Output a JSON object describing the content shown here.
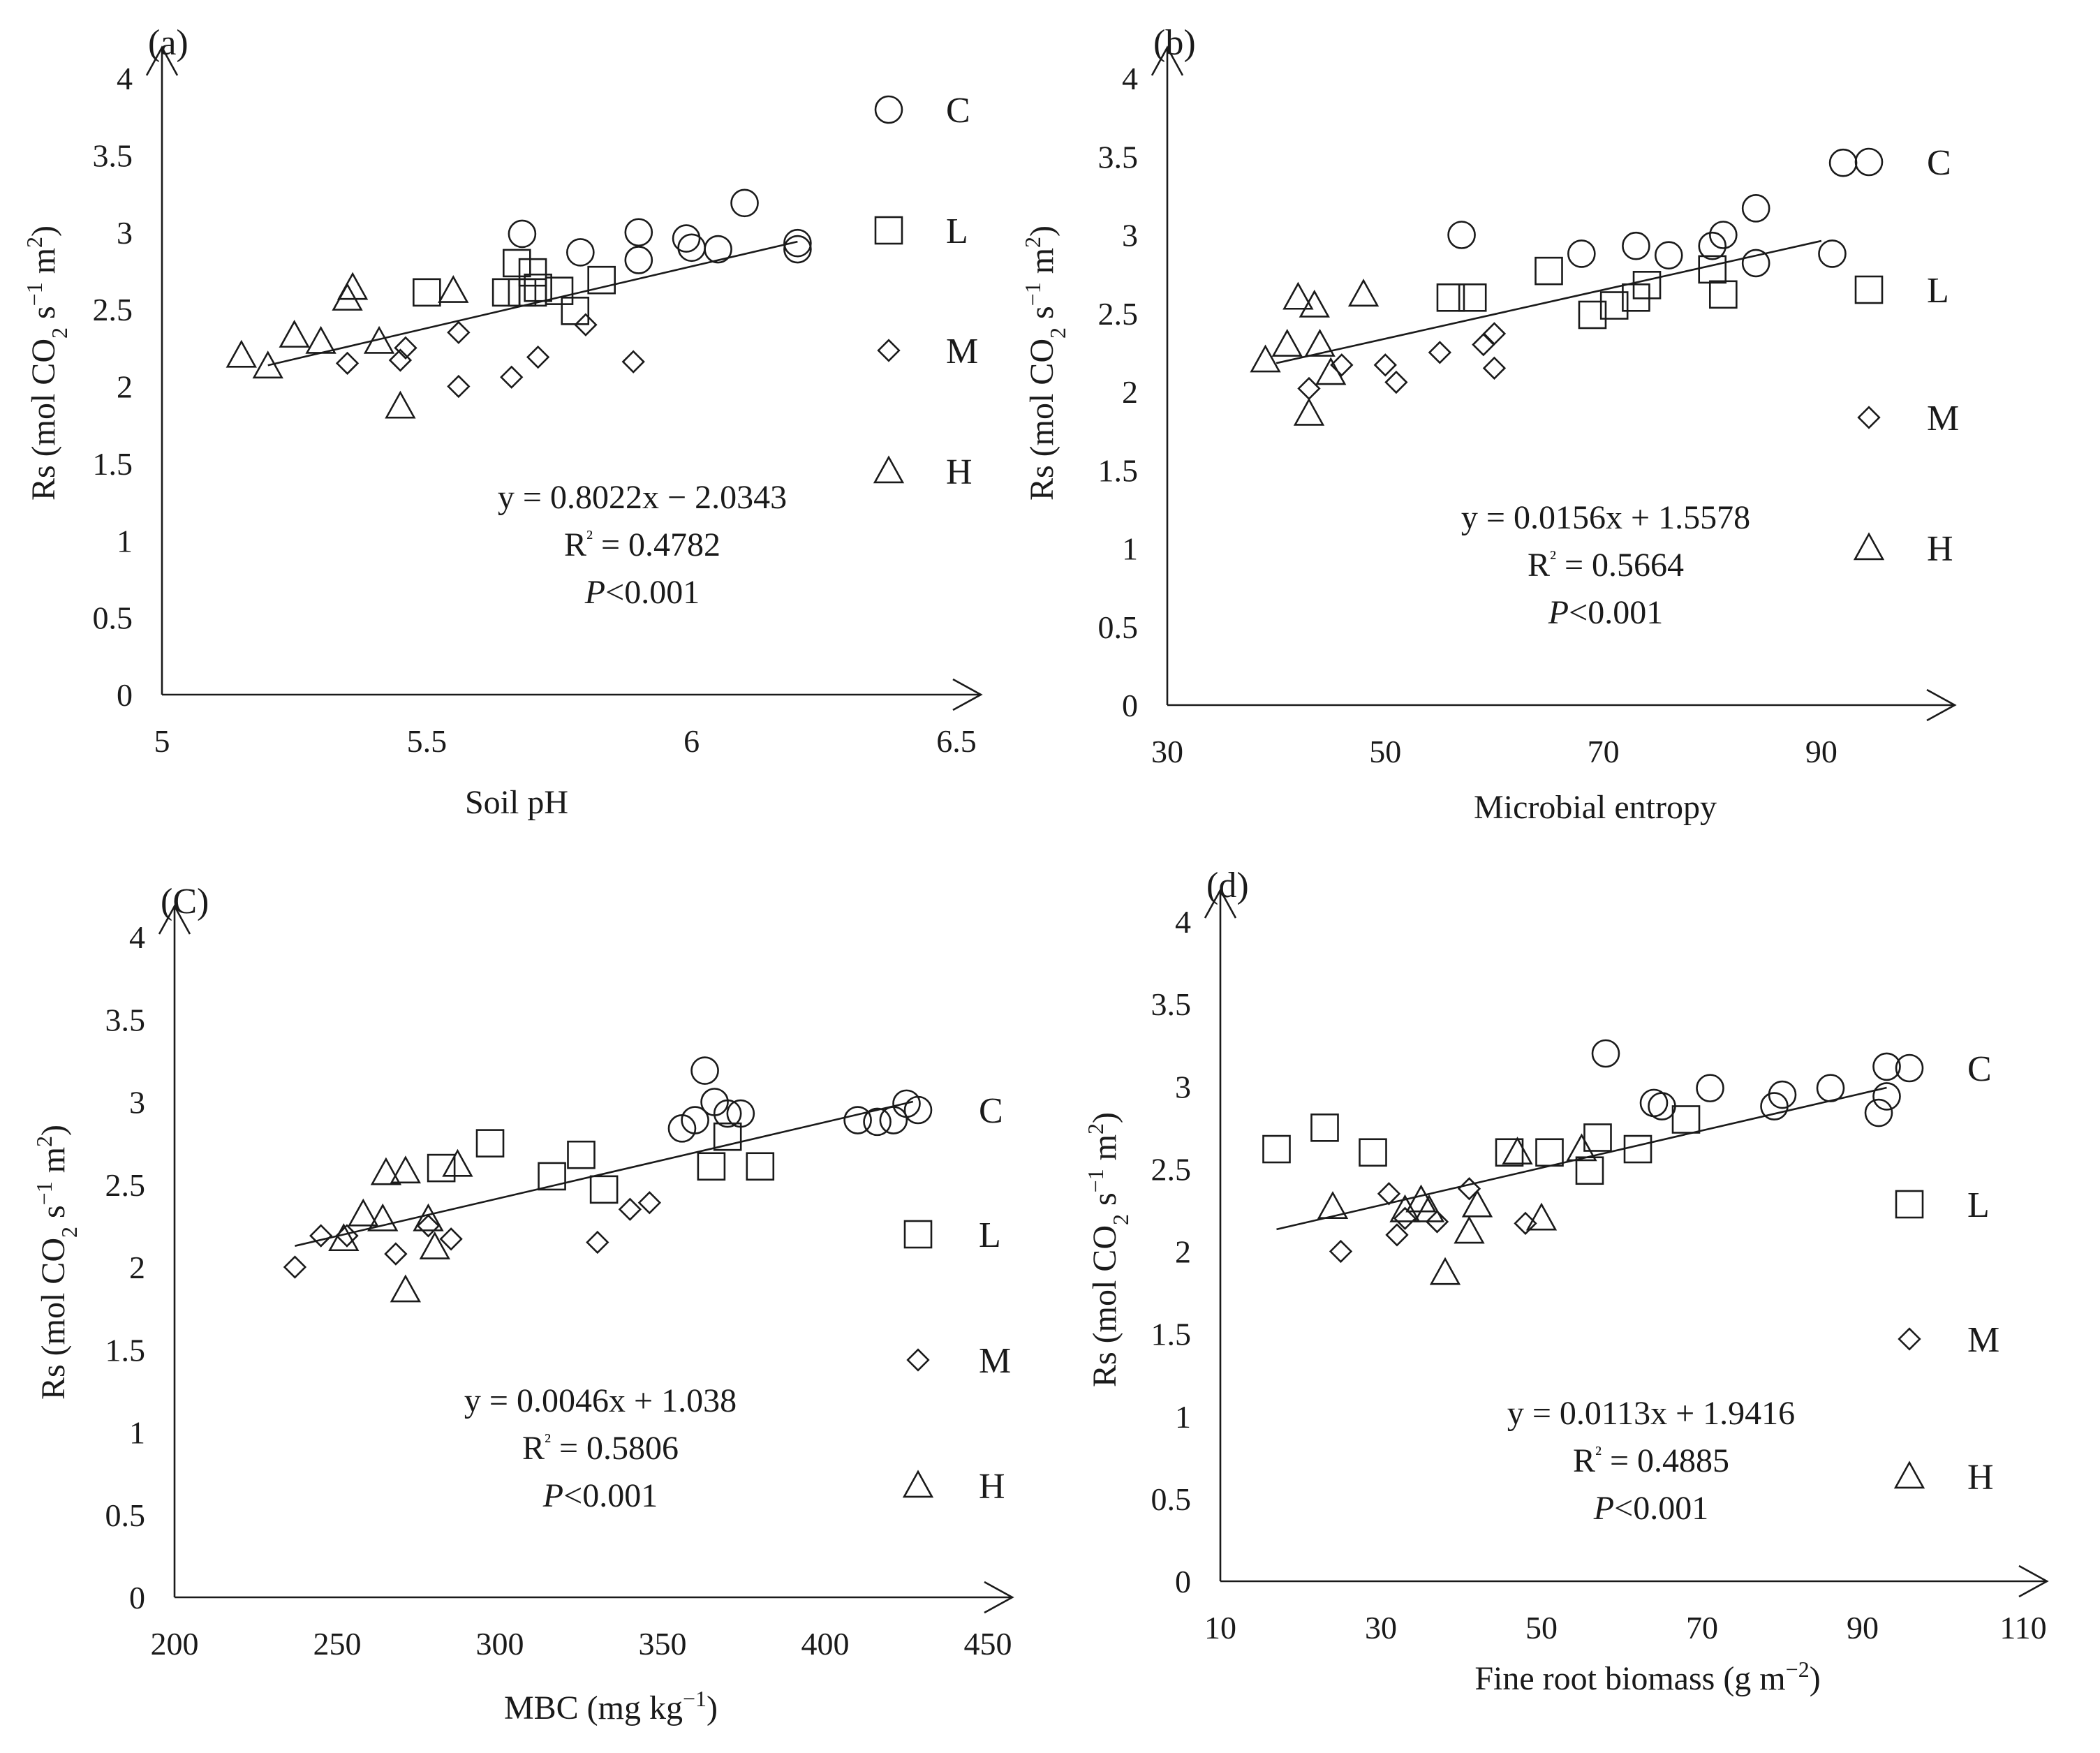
{
  "chart_data": [
    {
      "type": "scatter",
      "panel_label": "(a)",
      "xlabel": "Soil pH",
      "ylabel": {
        "main": "Rs (mol CO",
        "sub": "2",
        "mid": " s",
        "sup1": "−1",
        "end": " m",
        "sup2": "2",
        "close": ")"
      },
      "xlim": [
        5,
        6.5
      ],
      "ylim": [
        0,
        4
      ],
      "x_ticks": [
        "5",
        "5.5",
        "6",
        "6.5"
      ],
      "y_ticks": [
        "0",
        "0.5",
        "1",
        "1.5",
        "2",
        "2.5",
        "3",
        "3.5",
        "4"
      ],
      "equation": "y = 0.8022x − 2.0343",
      "r2_prefix": "R",
      "r2_value": " = 0.4782",
      "p_italic": "P",
      "p_value": "<0.001",
      "fit": {
        "slope": 0.8022,
        "intercept": -2.0343,
        "x_range": [
          5.2,
          6.2
        ]
      },
      "legend_position": "right",
      "series": [
        {
          "name": "C",
          "marker": "circle",
          "x": [
            5.79,
            5.9,
            5.9,
            5.99,
            6.0,
            6.05,
            6.1,
            6.2,
            6.2,
            5.68
          ],
          "y": [
            2.87,
            3.0,
            2.82,
            2.96,
            2.9,
            2.89,
            3.19,
            2.93,
            2.89,
            2.99
          ]
        },
        {
          "name": "L",
          "marker": "square",
          "x": [
            5.5,
            5.65,
            5.67,
            5.7,
            5.71,
            5.7,
            5.75,
            5.78,
            5.83,
            5.68
          ],
          "y": [
            2.61,
            2.61,
            2.8,
            2.74,
            2.64,
            2.61,
            2.62,
            2.49,
            2.69,
            2.61
          ]
        },
        {
          "name": "M",
          "marker": "diamond",
          "x": [
            5.35,
            5.45,
            5.46,
            5.56,
            5.56,
            5.66,
            5.71,
            5.8,
            5.89
          ],
          "y": [
            2.15,
            2.17,
            2.25,
            2.35,
            2.0,
            2.06,
            2.19,
            2.4,
            2.16
          ]
        },
        {
          "name": "H",
          "marker": "triangle",
          "x": [
            5.15,
            5.2,
            5.25,
            5.3,
            5.36,
            5.35,
            5.41,
            5.45,
            5.55
          ],
          "y": [
            2.2,
            2.13,
            2.33,
            2.29,
            2.64,
            2.57,
            2.29,
            1.87,
            2.62
          ]
        }
      ]
    },
    {
      "type": "scatter",
      "panel_label": "(b)",
      "xlabel": "Microbial entropy",
      "ylabel": {
        "main": "Rs (mol CO",
        "sub": "2",
        "mid": " s",
        "sup1": "−1",
        "end": " m",
        "sup2": "2",
        "close": ")"
      },
      "xlim": [
        30,
        100
      ],
      "ylim": [
        0,
        4
      ],
      "x_ticks": [
        "30",
        "50",
        "70",
        "90"
      ],
      "y_ticks": [
        "0",
        "0.5",
        "1",
        "1.5",
        "2",
        "2.5",
        "3",
        "3.5",
        "4"
      ],
      "equation": "y = 0.0156x + 1.5578",
      "r2_prefix": "R",
      "r2_value": " = 0.5664",
      "p_italic": "P",
      "p_value": "<0.001",
      "fit": {
        "slope": 0.0156,
        "intercept": 1.5578,
        "x_range": [
          40,
          90
        ]
      },
      "legend_position": "right",
      "series": [
        {
          "name": "C",
          "marker": "circle",
          "x": [
            57,
            68,
            73,
            76,
            80,
            81,
            84,
            84,
            91,
            92
          ],
          "y": [
            3.0,
            2.88,
            2.93,
            2.87,
            2.93,
            3.0,
            3.17,
            2.82,
            2.88,
            3.46
          ]
        },
        {
          "name": "L",
          "marker": "square",
          "x": [
            56,
            58,
            65,
            69,
            71,
            73,
            74,
            80,
            81
          ],
          "y": [
            2.6,
            2.6,
            2.77,
            2.49,
            2.55,
            2.6,
            2.68,
            2.78,
            2.62
          ]
        },
        {
          "name": "M",
          "marker": "diamond",
          "x": [
            43,
            46,
            50,
            51,
            55,
            59,
            60,
            60
          ],
          "y": [
            2.02,
            2.17,
            2.17,
            2.06,
            2.25,
            2.3,
            2.15,
            2.37
          ]
        },
        {
          "name": "H",
          "marker": "triangle",
          "x": [
            39,
            41,
            42,
            43,
            43.5,
            44,
            45,
            48
          ],
          "y": [
            2.2,
            2.3,
            2.6,
            1.86,
            2.55,
            2.3,
            2.12,
            2.62
          ]
        }
      ]
    },
    {
      "type": "scatter",
      "panel_label": "(C)",
      "xlabel": "MBC (mg kg",
      "xlabel_sup": "−1",
      "xlabel_close": ")",
      "ylabel": {
        "main": "Rs (mol CO",
        "sub": "2",
        "mid": " s",
        "sup1": "−1",
        "end": " m",
        "sup2": "2",
        "close": ")"
      },
      "xlim": [
        200,
        450
      ],
      "ylim": [
        0,
        4
      ],
      "x_ticks": [
        "200",
        "250",
        "300",
        "350",
        "400",
        "450"
      ],
      "y_ticks": [
        "0",
        "0.5",
        "1",
        "1.5",
        "2",
        "2.5",
        "3",
        "3.5",
        "4"
      ],
      "equation": "y = 0.0046x + 1.038",
      "r2_prefix": "R",
      "r2_value": " = 0.5806",
      "p_italic": "P",
      "p_value": "<0.001",
      "fit": {
        "slope": 0.0046,
        "intercept": 1.038,
        "x_range": [
          237,
          427
        ]
      },
      "legend_position": "right",
      "series": [
        {
          "name": "C",
          "marker": "circle",
          "x": [
            356,
            360,
            363,
            366,
            370,
            374,
            410,
            416,
            421,
            425
          ],
          "y": [
            2.84,
            2.89,
            3.19,
            3.0,
            2.93,
            2.93,
            2.89,
            2.88,
            2.89,
            2.99
          ]
        },
        {
          "name": "L",
          "marker": "square",
          "x": [
            282,
            297,
            316,
            325,
            332,
            365,
            370,
            380
          ],
          "y": [
            2.6,
            2.75,
            2.55,
            2.68,
            2.47,
            2.61,
            2.79,
            2.61
          ]
        },
        {
          "name": "M",
          "marker": "diamond",
          "x": [
            237,
            245,
            253,
            268,
            278,
            285,
            330,
            340,
            346
          ],
          "y": [
            2.0,
            2.19,
            2.19,
            2.08,
            2.25,
            2.17,
            2.15,
            2.35,
            2.39
          ]
        },
        {
          "name": "H",
          "marker": "triangle",
          "x": [
            252,
            258,
            264,
            265,
            271,
            271,
            278,
            280,
            287
          ],
          "y": [
            2.17,
            2.32,
            2.29,
            2.57,
            2.58,
            1.86,
            2.29,
            2.12,
            2.62
          ]
        }
      ]
    },
    {
      "type": "scatter",
      "panel_label": "(d)",
      "xlabel": "Fine root biomass (g m",
      "xlabel_sup": "−2",
      "xlabel_close": ")",
      "ylabel": {
        "main": "Rs (mol CO",
        "sub": "2",
        "mid": " s",
        "sup1": "−1",
        "end": " m",
        "sup2": "2",
        "close": ")"
      },
      "xlim": [
        10,
        110
      ],
      "ylim": [
        0,
        4
      ],
      "x_ticks": [
        "10",
        "30",
        "50",
        "70",
        "90",
        "110"
      ],
      "y_ticks": [
        "0",
        "0.5",
        "1",
        "1.5",
        "2",
        "2.5",
        "3",
        "3.5",
        "4"
      ],
      "equation": "y = 0.0113x + 1.9416",
      "r2_prefix": "R",
      "r2_value": " = 0.4885",
      "p_italic": "P",
      "p_value": "<0.001",
      "fit": {
        "slope": 0.0113,
        "intercept": 1.9416,
        "x_range": [
          17,
          93
        ]
      },
      "legend_position": "right",
      "series": [
        {
          "name": "C",
          "marker": "circle",
          "x": [
            58,
            64,
            65,
            71,
            79,
            80,
            86,
            92,
            93,
            93
          ],
          "y": [
            3.2,
            2.9,
            2.88,
            2.99,
            2.88,
            2.95,
            2.99,
            2.84,
            2.94,
            3.12
          ]
        },
        {
          "name": "L",
          "marker": "square",
          "x": [
            17,
            23,
            29,
            46,
            51,
            56,
            57,
            62,
            68
          ],
          "y": [
            2.62,
            2.75,
            2.6,
            2.6,
            2.6,
            2.49,
            2.69,
            2.62,
            2.8
          ]
        },
        {
          "name": "M",
          "marker": "diamond",
          "x": [
            25,
            31,
            32,
            33,
            37,
            41,
            48
          ],
          "y": [
            2.0,
            2.35,
            2.1,
            2.2,
            2.18,
            2.38,
            2.17
          ]
        },
        {
          "name": "H",
          "marker": "triangle",
          "x": [
            24,
            33,
            35,
            36,
            38,
            41,
            42,
            47,
            50,
            55
          ],
          "y": [
            2.27,
            2.25,
            2.31,
            2.25,
            1.87,
            2.12,
            2.28,
            2.6,
            2.2,
            2.62
          ]
        }
      ]
    }
  ]
}
